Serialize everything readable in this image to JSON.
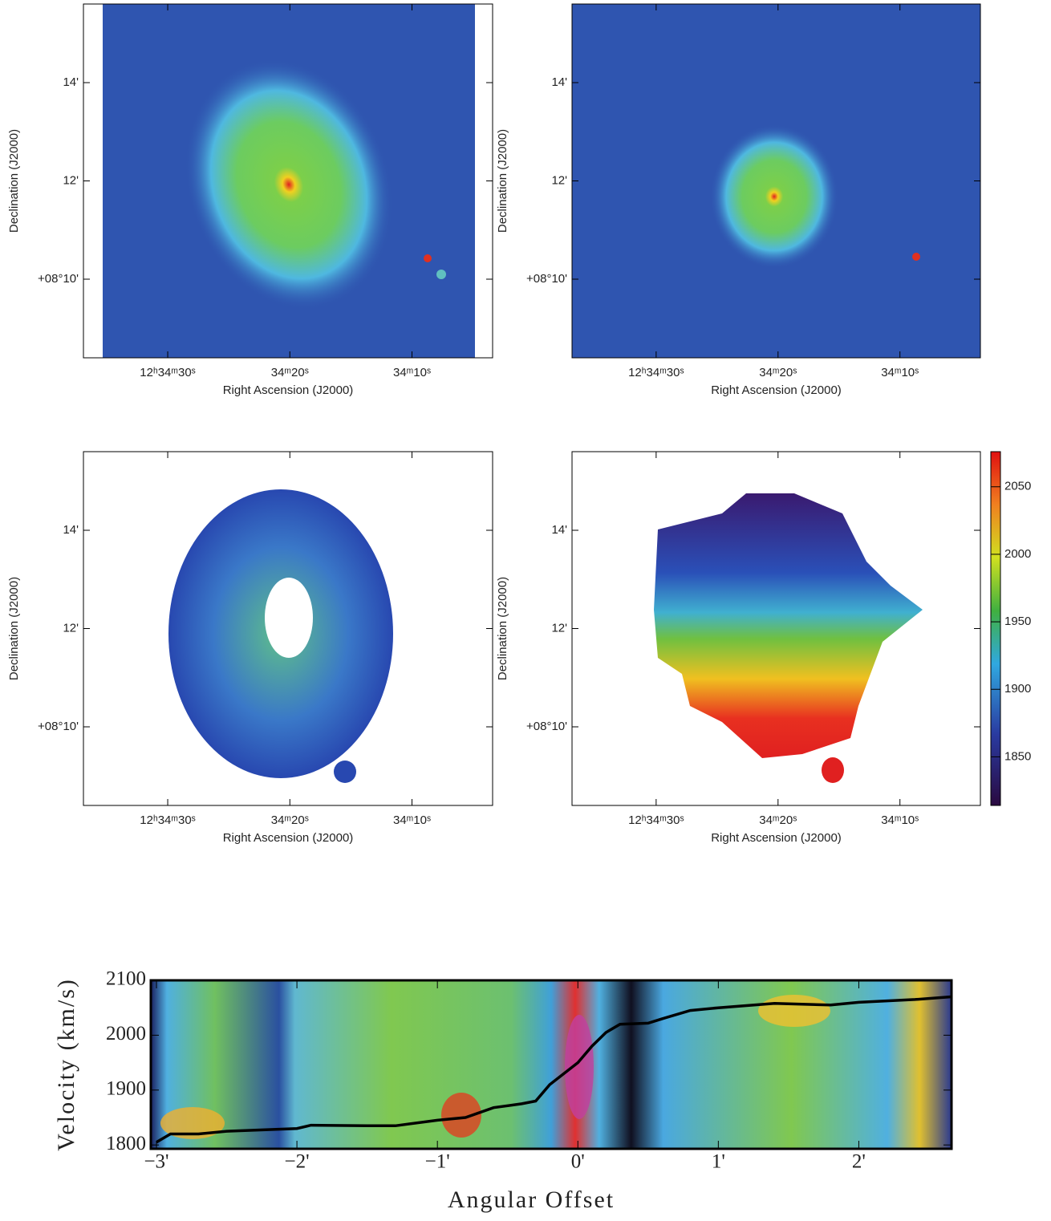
{
  "chart_data": [
    {
      "type": "image",
      "xlabel": "Right Ascension (J2000)",
      "ylabel": "Declination (J2000)",
      "xlim": [
        36.9,
        3.4
      ],
      "ylim": [
        8.4,
        15.6
      ],
      "xticks": [
        {
          "value": 30,
          "label": "12ʰ34ᵐ30ˢ"
        },
        {
          "value": 20,
          "label": "34ᵐ20ˢ"
        },
        {
          "value": 10,
          "label": "34ᵐ10ˢ"
        }
      ],
      "yticks": [
        {
          "value": 14,
          "label": "14'"
        },
        {
          "value": 12,
          "label": "12'"
        },
        {
          "value": 10,
          "label": "+08°10'"
        }
      ]
    },
    {
      "type": "image",
      "xlabel": "Right Ascension (J2000)",
      "ylabel": "Declination (J2000)",
      "xlim": [
        36.9,
        3.4
      ],
      "ylim": [
        8.4,
        15.6
      ],
      "xticks": [
        {
          "value": 30,
          "label": "12ʰ34ᵐ30ˢ"
        },
        {
          "value": 20,
          "label": "34ᵐ20ˢ"
        },
        {
          "value": 10,
          "label": "34ᵐ10ˢ"
        }
      ],
      "yticks": [
        {
          "value": 14,
          "label": "14'"
        },
        {
          "value": 12,
          "label": "12'"
        },
        {
          "value": 10,
          "label": "+08°10'"
        }
      ]
    },
    {
      "type": "image",
      "xlabel": "Right Ascension (J2000)",
      "ylabel": "Declination (J2000)",
      "xlim": [
        36.9,
        3.4
      ],
      "ylim": [
        8.4,
        15.6
      ],
      "xticks": [
        {
          "value": 30,
          "label": "12ʰ34ᵐ30ˢ"
        },
        {
          "value": 20,
          "label": "34ᵐ20ˢ"
        },
        {
          "value": 10,
          "label": "34ᵐ10ˢ"
        }
      ],
      "yticks": [
        {
          "value": 14,
          "label": "14'"
        },
        {
          "value": 12,
          "label": "12'"
        },
        {
          "value": 10,
          "label": "+08°10'"
        }
      ]
    },
    {
      "type": "image",
      "xlabel": "Right Ascension (J2000)",
      "ylabel": "Declination (J2000)",
      "xlim": [
        36.9,
        3.4
      ],
      "ylim": [
        8.4,
        15.6
      ],
      "xticks": [
        {
          "value": 30,
          "label": "12ʰ34ᵐ30ˢ"
        },
        {
          "value": 20,
          "label": "34ᵐ20ˢ"
        },
        {
          "value": 10,
          "label": "34ᵐ10ˢ"
        }
      ],
      "yticks": [
        {
          "value": 14,
          "label": "14'"
        },
        {
          "value": 12,
          "label": "12'"
        },
        {
          "value": 10,
          "label": "+08°10'"
        }
      ],
      "zlim": [
        1814,
        2076
      ],
      "zticks": [
        1850,
        1900,
        1950,
        2000,
        2050
      ]
    },
    {
      "type": "line",
      "xlabel": "Angular Offset",
      "ylabel": "Velocity (km/s)",
      "color": "#000000",
      "xlim": [
        -3.04,
        2.66
      ],
      "ylim": [
        1793,
        2100
      ],
      "xticks": [
        {
          "value": -3,
          "label": "−3'"
        },
        {
          "value": -2,
          "label": "−2'"
        },
        {
          "value": -1,
          "label": "−1'"
        },
        {
          "value": 0,
          "label": "0'"
        },
        {
          "value": 1,
          "label": "1'"
        },
        {
          "value": 2,
          "label": "2'"
        }
      ],
      "yticks": [
        1800,
        1900,
        2000,
        2100
      ],
      "x": [
        -3.0,
        -2.9,
        -2.7,
        -2.5,
        -2.0,
        -1.9,
        -1.5,
        -1.3,
        -1.0,
        -0.8,
        -0.6,
        -0.4,
        -0.3,
        -0.2,
        0.0,
        0.1,
        0.2,
        0.3,
        0.5,
        0.6,
        0.8,
        1.0,
        1.4,
        1.8,
        2.0,
        2.4,
        2.66
      ],
      "values": [
        1805,
        1820,
        1820,
        1825,
        1830,
        1836,
        1835,
        1835,
        1845,
        1850,
        1868,
        1875,
        1880,
        1910,
        1950,
        1980,
        2005,
        2020,
        2022,
        2030,
        2045,
        2050,
        2058,
        2055,
        2060,
        2065,
        2070
      ]
    }
  ]
}
